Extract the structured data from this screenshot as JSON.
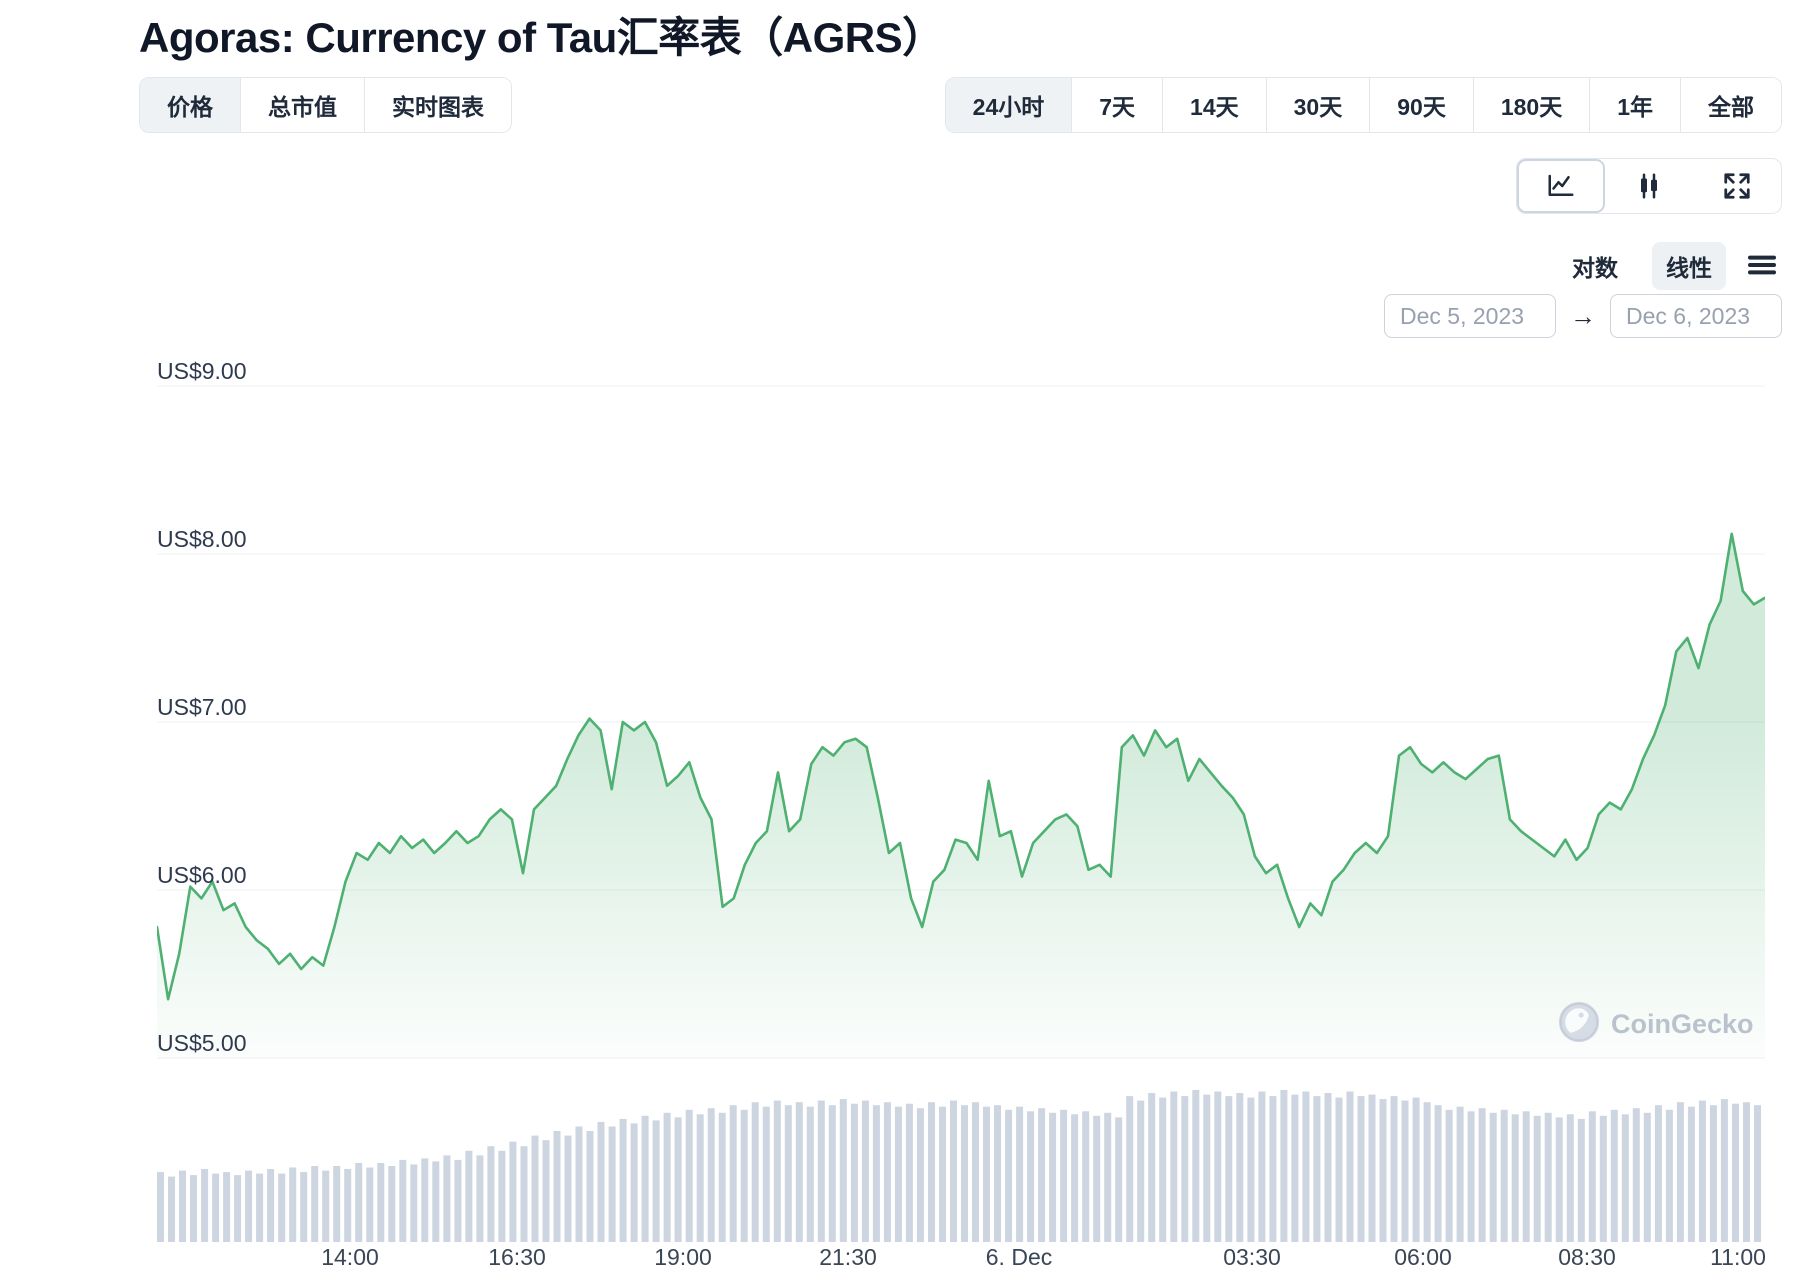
{
  "page": {
    "title": "Agoras: Currency of Tau汇率表（AGRS）"
  },
  "metric_tabs": {
    "items": [
      {
        "label": "价格",
        "active": true
      },
      {
        "label": "总市值",
        "active": false
      },
      {
        "label": "实时图表",
        "active": false
      }
    ]
  },
  "range_tabs": {
    "items": [
      {
        "label": "24小时",
        "active": true
      },
      {
        "label": "7天",
        "active": false
      },
      {
        "label": "14天",
        "active": false
      },
      {
        "label": "30天",
        "active": false
      },
      {
        "label": "90天",
        "active": false
      },
      {
        "label": "180天",
        "active": false
      },
      {
        "label": "1年",
        "active": false
      },
      {
        "label": "全部",
        "active": false
      }
    ]
  },
  "chart_type_toolbar": {
    "buttons": [
      {
        "name": "line-chart",
        "active": true
      },
      {
        "name": "candlestick",
        "active": false
      },
      {
        "name": "fullscreen",
        "active": false
      }
    ]
  },
  "scale_toggle": {
    "log_label": "对数",
    "linear_label": "线性",
    "active": "linear"
  },
  "date_range": {
    "from": "Dec 5, 2023",
    "to": "Dec 6, 2023",
    "arrow": "→"
  },
  "watermark": {
    "label": "CoinGecko"
  },
  "chart_data": {
    "type": "line",
    "title": "Agoras: Currency of Tau (AGRS) price, 24 hours, Dec 5 2023 - Dec 6 2023",
    "currency_prefix": "US$",
    "ylim": [
      5,
      9
    ],
    "grid": true,
    "legend": false,
    "colors": {
      "line": "#4eb071",
      "area_fill": "#4eb071",
      "volume": "#cdd5e1",
      "gridline": "#edf1f6"
    },
    "y_ticks": [
      {
        "label": "US$9.00",
        "value": 9
      },
      {
        "label": "US$8.00",
        "value": 8
      },
      {
        "label": "US$7.00",
        "value": 7
      },
      {
        "label": "US$6.00",
        "value": 6
      },
      {
        "label": "US$5.00",
        "value": 5
      }
    ],
    "x_tick_labels": [
      "14:00",
      "16:30",
      "19:00",
      "21:30",
      "6. Dec",
      "03:30",
      "06:00",
      "08:30",
      "11:00"
    ],
    "x_tick_positions": [
      0.12,
      0.224,
      0.327,
      0.43,
      0.536,
      0.681,
      0.787,
      0.889,
      0.983
    ],
    "series": [
      {
        "name": "price_usd",
        "color": "#4eb071",
        "values": [
          5.78,
          5.35,
          5.62,
          6.02,
          5.95,
          6.05,
          5.88,
          5.92,
          5.78,
          5.7,
          5.65,
          5.56,
          5.62,
          5.53,
          5.6,
          5.55,
          5.78,
          6.05,
          6.22,
          6.18,
          6.28,
          6.22,
          6.32,
          6.25,
          6.3,
          6.22,
          6.28,
          6.35,
          6.28,
          6.32,
          6.42,
          6.48,
          6.42,
          6.1,
          6.48,
          6.55,
          6.62,
          6.78,
          6.92,
          7.02,
          6.95,
          6.6,
          7.0,
          6.95,
          7.0,
          6.88,
          6.62,
          6.68,
          6.76,
          6.55,
          6.42,
          5.9,
          5.95,
          6.15,
          6.28,
          6.35,
          6.7,
          6.35,
          6.42,
          6.75,
          6.85,
          6.8,
          6.88,
          6.9,
          6.85,
          6.55,
          6.22,
          6.28,
          5.95,
          5.78,
          6.05,
          6.12,
          6.3,
          6.28,
          6.18,
          6.65,
          6.32,
          6.35,
          6.08,
          6.28,
          6.35,
          6.42,
          6.45,
          6.38,
          6.12,
          6.15,
          6.08,
          6.85,
          6.92,
          6.8,
          6.95,
          6.85,
          6.9,
          6.65,
          6.78,
          6.7,
          6.62,
          6.55,
          6.45,
          6.2,
          6.1,
          6.15,
          5.95,
          5.78,
          5.92,
          5.85,
          6.05,
          6.12,
          6.22,
          6.28,
          6.22,
          6.32,
          6.8,
          6.85,
          6.75,
          6.7,
          6.76,
          6.7,
          6.66,
          6.72,
          6.78,
          6.8,
          6.42,
          6.35,
          6.3,
          6.25,
          6.2,
          6.3,
          6.18,
          6.25,
          6.45,
          6.52,
          6.48,
          6.6,
          6.78,
          6.92,
          7.1,
          7.42,
          7.5,
          7.32,
          7.58,
          7.72,
          8.12,
          7.78,
          7.7,
          7.74
        ]
      },
      {
        "name": "volume_relative",
        "color": "#cdd5e1",
        "values": [
          0.46,
          0.43,
          0.47,
          0.44,
          0.48,
          0.45,
          0.46,
          0.44,
          0.47,
          0.45,
          0.48,
          0.45,
          0.49,
          0.46,
          0.5,
          0.47,
          0.5,
          0.48,
          0.52,
          0.49,
          0.52,
          0.5,
          0.54,
          0.51,
          0.55,
          0.53,
          0.57,
          0.54,
          0.6,
          0.57,
          0.63,
          0.6,
          0.66,
          0.63,
          0.7,
          0.67,
          0.73,
          0.7,
          0.76,
          0.73,
          0.79,
          0.76,
          0.81,
          0.78,
          0.83,
          0.8,
          0.85,
          0.82,
          0.87,
          0.84,
          0.88,
          0.85,
          0.9,
          0.87,
          0.92,
          0.89,
          0.93,
          0.9,
          0.92,
          0.89,
          0.93,
          0.9,
          0.94,
          0.91,
          0.93,
          0.9,
          0.92,
          0.89,
          0.91,
          0.88,
          0.92,
          0.89,
          0.93,
          0.9,
          0.92,
          0.89,
          0.9,
          0.87,
          0.89,
          0.86,
          0.88,
          0.85,
          0.87,
          0.84,
          0.86,
          0.83,
          0.85,
          0.82,
          0.96,
          0.93,
          0.98,
          0.95,
          0.99,
          0.96,
          1.0,
          0.97,
          0.99,
          0.96,
          0.98,
          0.95,
          0.99,
          0.96,
          1.0,
          0.97,
          0.99,
          0.96,
          0.98,
          0.95,
          0.99,
          0.96,
          0.97,
          0.94,
          0.96,
          0.93,
          0.95,
          0.92,
          0.9,
          0.87,
          0.89,
          0.86,
          0.88,
          0.85,
          0.87,
          0.84,
          0.86,
          0.83,
          0.85,
          0.82,
          0.84,
          0.81,
          0.86,
          0.83,
          0.87,
          0.84,
          0.88,
          0.85,
          0.9,
          0.87,
          0.92,
          0.89,
          0.93,
          0.9,
          0.94,
          0.91,
          0.92,
          0.9
        ]
      }
    ]
  }
}
